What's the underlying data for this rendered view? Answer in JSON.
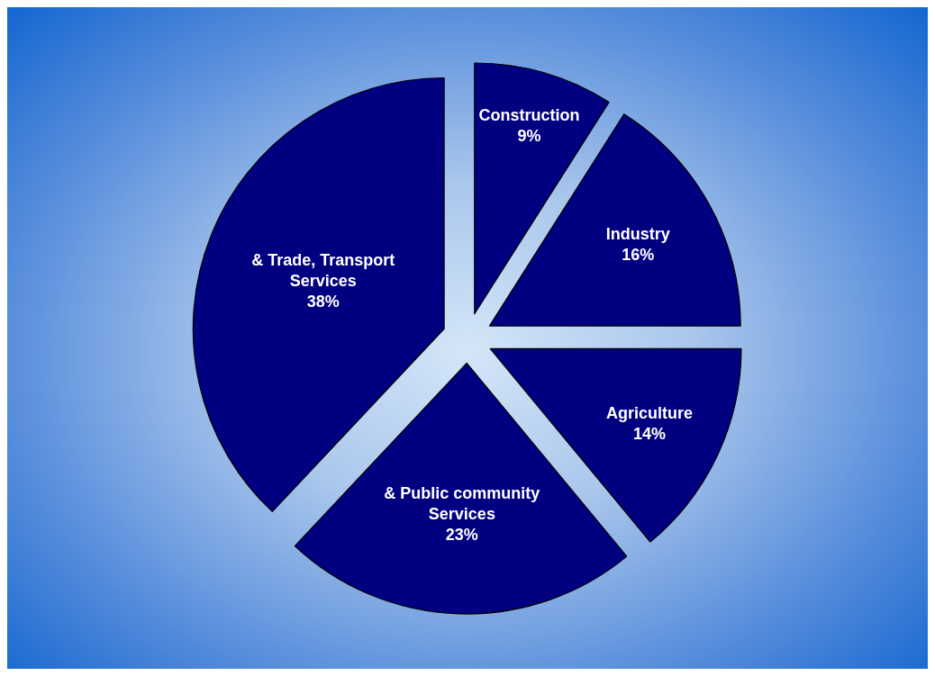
{
  "chart_data": {
    "type": "pie",
    "categories": [
      "Construction",
      "Industry",
      "Agriculture",
      "& Public community Services",
      "& Trade, Transport Services"
    ],
    "values": [
      9,
      16,
      14,
      23,
      38
    ],
    "value_labels": [
      "9%",
      "16%",
      "14%",
      "23%",
      "38%"
    ],
    "colors": [
      "#000080",
      "#000080",
      "#000080",
      "#000080",
      "#000080"
    ],
    "legend": false
  }
}
